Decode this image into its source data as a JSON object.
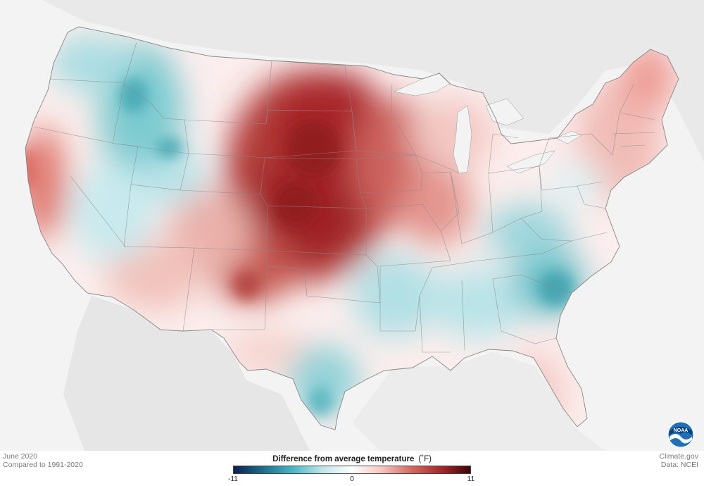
{
  "map": {
    "meta_left_line1": "June 2020",
    "meta_left_line2": "Compared to 1991-2020",
    "credit_line1": "Climate.gov",
    "credit_line2": "Data: NCEI",
    "legend": {
      "title": "Difference from average temperature",
      "unit": "(˚F)",
      "min_label": "-11",
      "mid_label": "0",
      "max_label": "11",
      "range": [
        -11,
        11
      ],
      "colors": [
        "#0b1f4e",
        "#1b6f8a",
        "#48b8c4",
        "#bfe6ec",
        "#ffffff",
        "#f7c6c0",
        "#d56a62",
        "#a8282a",
        "#3e0508"
      ]
    },
    "logo_text": "NOAA"
  }
}
